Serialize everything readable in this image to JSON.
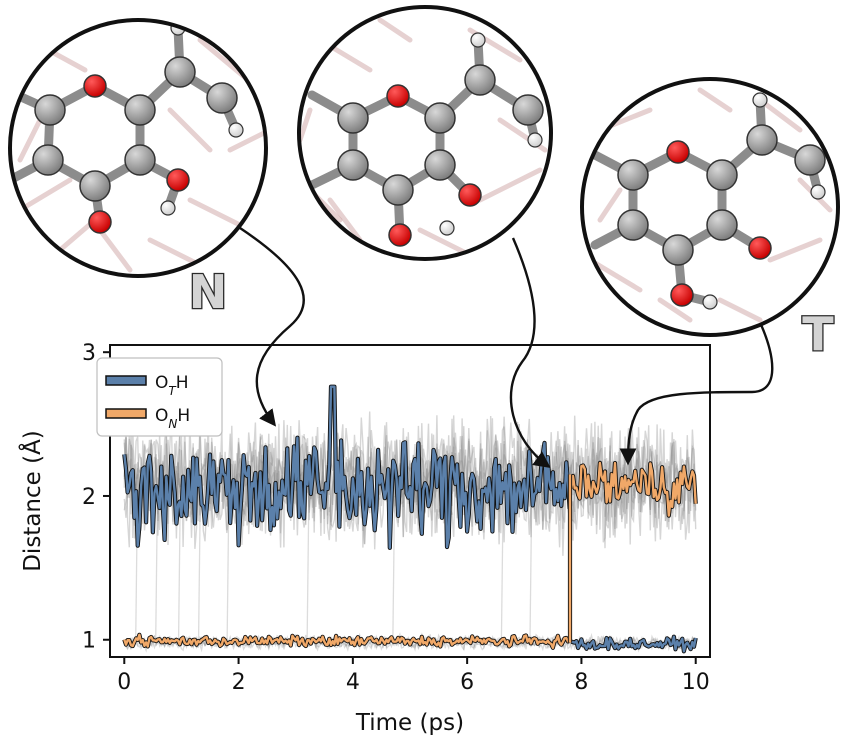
{
  "chart_data": {
    "type": "line",
    "xlabel": "Time (ps)",
    "ylabel": "Distance (Å)",
    "xlim": [
      -0.25,
      10.25
    ],
    "ylim": [
      0.88,
      3.05
    ],
    "xticks": [
      "0",
      "2",
      "4",
      "6",
      "8",
      "10"
    ],
    "yticks": [
      "1",
      "2",
      "3"
    ],
    "legend": {
      "placement": "top-left",
      "entries": [
        {
          "prefix": "O",
          "subscript": "T",
          "suffix": "H",
          "color": "#5b80aa"
        },
        {
          "prefix": "O",
          "subscript": "N",
          "suffix": "H",
          "color": "#f0a868"
        }
      ]
    },
    "transfer_time": 7.8,
    "series": [
      {
        "name": "OTH",
        "color": "#5b80aa",
        "segments": [
          {
            "x_start": 0.0,
            "x_end": 7.8,
            "mean": 2.05,
            "spread": 0.32
          },
          {
            "x_start": 7.8,
            "x_end": 10.0,
            "mean": 0.97,
            "spread": 0.035
          }
        ],
        "peak": {
          "x": 3.65,
          "y": 2.76
        }
      },
      {
        "name": "ONH",
        "color": "#f0a868",
        "segments": [
          {
            "x_start": 0.0,
            "x_end": 7.8,
            "mean": 0.99,
            "spread": 0.03
          },
          {
            "x_start": 7.8,
            "x_end": 10.0,
            "mean": 2.08,
            "spread": 0.16
          }
        ]
      }
    ],
    "background_traces": "multiple grey replicate trajectories"
  },
  "insets": [
    {
      "label": "N",
      "points_to": {
        "x": 2.9,
        "y": 2.3
      }
    },
    {
      "label": "",
      "points_to": {
        "x": 7.75,
        "y": 2.2
      }
    },
    {
      "label": "T",
      "points_to": {
        "x": 9.0,
        "y": 2.25
      }
    }
  ],
  "colors": {
    "oxygen": "#e41a1c",
    "carbon": "#9a9a9a",
    "hydrogen": "#f2f2f2",
    "bond": "#8c8c8c"
  }
}
